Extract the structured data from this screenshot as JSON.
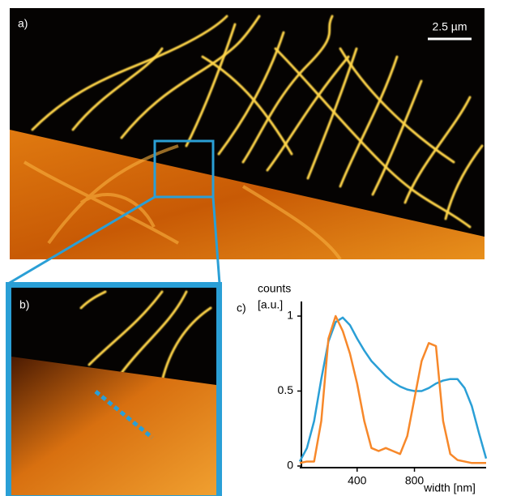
{
  "panels": {
    "a": "a)",
    "b": "b)",
    "c": "c)"
  },
  "scale_bar": "2.5 µm",
  "chart_data": {
    "type": "line",
    "ylabel": [
      "counts",
      "[a.u.]"
    ],
    "xlabel": "width [nm]",
    "x": [
      0,
      50,
      100,
      150,
      200,
      250,
      300,
      350,
      400,
      450,
      500,
      550,
      600,
      650,
      700,
      750,
      800,
      850,
      900,
      950,
      1000,
      1050,
      1100,
      1150,
      1200,
      1250,
      1300
    ],
    "series": [
      {
        "color": "#2a9fd6",
        "values": [
          0.03,
          0.12,
          0.3,
          0.58,
          0.83,
          0.96,
          0.99,
          0.94,
          0.85,
          0.77,
          0.7,
          0.65,
          0.6,
          0.56,
          0.53,
          0.51,
          0.5,
          0.5,
          0.52,
          0.55,
          0.57,
          0.58,
          0.58,
          0.52,
          0.4,
          0.22,
          0.05
        ]
      },
      {
        "color": "#f7882a",
        "values": [
          0.02,
          0.03,
          0.03,
          0.3,
          0.85,
          1.0,
          0.9,
          0.75,
          0.55,
          0.3,
          0.12,
          0.1,
          0.12,
          0.1,
          0.08,
          0.2,
          0.45,
          0.7,
          0.82,
          0.8,
          0.3,
          0.08,
          0.04,
          0.03,
          0.02,
          0.02,
          0.02
        ]
      }
    ],
    "xlim": [
      0,
      1300
    ],
    "ylim": [
      0,
      1.1
    ],
    "xticks": [
      400,
      800
    ],
    "yticks": [
      0,
      0.5,
      1
    ]
  }
}
